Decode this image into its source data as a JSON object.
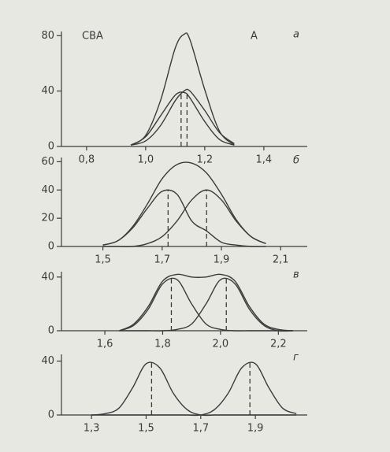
{
  "chart_data": [
    {
      "type": "line",
      "panel_label": "а",
      "annotations": [
        "СВА",
        "А"
      ],
      "x": [
        0.95,
        1.0,
        1.05,
        1.1,
        1.13,
        1.15,
        1.2,
        1.25,
        1.3
      ],
      "series": [
        {
          "color": "#3a3a3a",
          "values": [
            1,
            8,
            33,
            71,
            81,
            77,
            41,
            11,
            1
          ]
        },
        {
          "color": "#3a3a3a",
          "values": [
            1,
            7,
            22,
            37,
            39,
            35,
            18,
            5,
            1
          ]
        },
        {
          "color": "#3a3a3a",
          "values": [
            1,
            4,
            15,
            33,
            40,
            40,
            26,
            10,
            2
          ]
        }
      ],
      "dashes": [
        {
          "x": 1.12,
          "y": 39
        },
        {
          "x": 1.14,
          "y": 40
        }
      ],
      "xlim": [
        0.715,
        1.547
      ],
      "ylim": [
        0,
        83
      ],
      "xticks": [
        {
          "value": 0.8,
          "label": "0,8"
        },
        {
          "value": 1.0,
          "label": "1,0"
        },
        {
          "value": 1.2,
          "label": "1,2"
        },
        {
          "value": 1.4,
          "label": "1,4"
        }
      ],
      "yticks": [
        0,
        40,
        80
      ]
    },
    {
      "type": "line",
      "panel_label": "б",
      "x": [
        1.5,
        1.55,
        1.6,
        1.65,
        1.7,
        1.75,
        1.8,
        1.85,
        1.9,
        1.95,
        2.0,
        2.05
      ],
      "series": [
        {
          "color": "#3a3a3a",
          "values": [
            1,
            4,
            14,
            30,
            48,
            58,
            59,
            52,
            37,
            19,
            7,
            2
          ]
        },
        {
          "color": "#3a3a3a",
          "values": [
            1,
            4,
            13,
            27,
            39,
            37,
            18,
            11,
            3,
            1,
            0,
            0
          ]
        },
        {
          "color": "#3a3a3a",
          "values": [
            0,
            0,
            0,
            2,
            7,
            18,
            33,
            40,
            33,
            18,
            7,
            2
          ]
        }
      ],
      "dashes": [
        {
          "x": 1.72,
          "y": 40
        },
        {
          "x": 1.85,
          "y": 40
        }
      ],
      "xlim": [
        1.36,
        2.19
      ],
      "ylim": [
        0,
        63
      ],
      "xticks": [
        {
          "value": 1.5,
          "label": "1,5"
        },
        {
          "value": 1.7,
          "label": "1,7"
        },
        {
          "value": 1.9,
          "label": "1,9"
        },
        {
          "value": 2.1,
          "label": "2,1"
        }
      ],
      "yticks": [
        0,
        20,
        40,
        60
      ]
    },
    {
      "type": "line",
      "panel_label": "в",
      "x": [
        1.65,
        1.7,
        1.75,
        1.8,
        1.85,
        1.9,
        1.95,
        2.0,
        2.05,
        2.1,
        2.15,
        2.2,
        2.25
      ],
      "series": [
        {
          "color": "#3a3a3a",
          "values": [
            0,
            5,
            18,
            37,
            42,
            40,
            40,
            42,
            37,
            18,
            5,
            1,
            0
          ]
        },
        {
          "color": "#3a3a3a",
          "values": [
            0,
            4,
            16,
            35,
            38,
            20,
            5,
            1,
            0,
            0,
            0,
            0,
            0
          ]
        },
        {
          "color": "#3a3a3a",
          "values": [
            0,
            0,
            0,
            0,
            1,
            5,
            20,
            38,
            35,
            16,
            4,
            0,
            0
          ]
        }
      ],
      "dashes": [
        {
          "x": 1.83,
          "y": 40
        },
        {
          "x": 2.02,
          "y": 40
        }
      ],
      "xlim": [
        1.45,
        2.3
      ],
      "ylim": [
        0,
        44
      ],
      "xticks": [
        {
          "value": 1.6,
          "label": "1,6"
        },
        {
          "value": 1.8,
          "label": "1,8"
        },
        {
          "value": 2.0,
          "label": "2,0"
        },
        {
          "value": 2.2,
          "label": "2,2"
        }
      ],
      "yticks": [
        0,
        40
      ]
    },
    {
      "type": "line",
      "panel_label": "г",
      "x": [
        1.3,
        1.35,
        1.4,
        1.45,
        1.5,
        1.55,
        1.6,
        1.65,
        1.7,
        1.75,
        1.8,
        1.85,
        1.9,
        1.95,
        2.0,
        2.05
      ],
      "series": [
        {
          "color": "#3a3a3a",
          "values": [
            0,
            1,
            5,
            20,
            38,
            35,
            16,
            4,
            0,
            0,
            0,
            0,
            0,
            0,
            0,
            0
          ]
        },
        {
          "color": "#3a3a3a",
          "values": [
            0,
            0,
            0,
            0,
            0,
            0,
            0,
            0,
            0,
            4,
            16,
            35,
            38,
            20,
            5,
            1
          ]
        }
      ],
      "dashes": [
        {
          "x": 1.52,
          "y": 40
        },
        {
          "x": 1.88,
          "y": 40
        }
      ],
      "xlim": [
        1.19,
        2.09
      ],
      "ylim": [
        0,
        45
      ],
      "xticks": [
        {
          "value": 1.3,
          "label": "1,3"
        },
        {
          "value": 1.5,
          "label": "1,5"
        },
        {
          "value": 1.7,
          "label": "1,7"
        },
        {
          "value": 1.9,
          "label": "1,9"
        }
      ],
      "yticks": [
        0,
        40
      ]
    }
  ]
}
